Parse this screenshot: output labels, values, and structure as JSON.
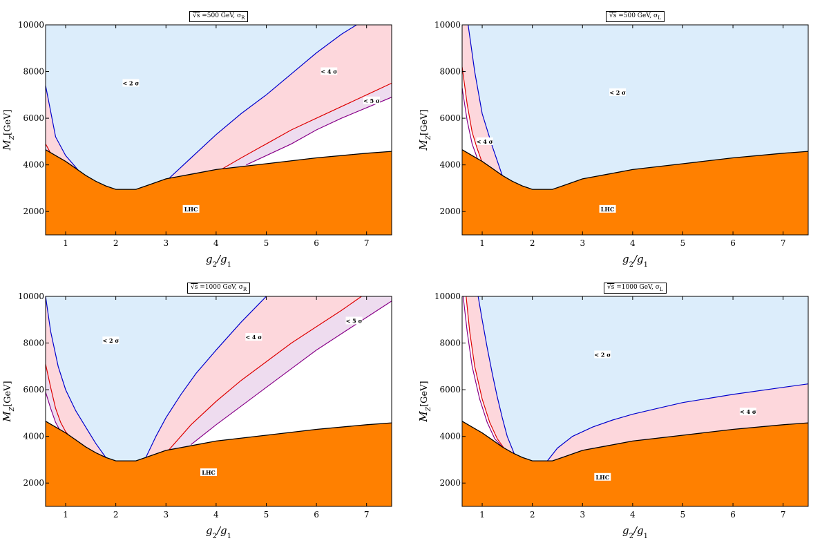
{
  "chart_data": [
    {
      "type": "area",
      "title": "√s =500 GeV, σR",
      "title_parts": {
        "sqrt": "√s",
        "rest": " =500 GeV, σ",
        "sub": "R"
      },
      "xlabel": "g2/g1",
      "ylabel": "MZ[GeV]",
      "xlim": [
        0.6,
        7.5
      ],
      "ylim": [
        1000,
        10000
      ],
      "xticks": [
        1,
        2,
        3,
        4,
        5,
        6,
        7
      ],
      "yticks": [
        2000,
        4000,
        6000,
        8000,
        10000
      ],
      "regions": [
        {
          "name": "< 2σ",
          "label": "< 2 σ",
          "color": "#dcedfb",
          "label_at": [
            2.3,
            7500
          ]
        },
        {
          "name": "< 4σ",
          "label": "< 4 σ",
          "color": "#fdd7dc",
          "label_at": [
            6.25,
            8000
          ]
        },
        {
          "name": "< 5σ",
          "label": "< 5 σ",
          "color": "#eedcef",
          "label_at": [
            7.1,
            6750
          ]
        },
        {
          "name": "LHC",
          "label": "LHC",
          "color": "#ff8000",
          "label_at": [
            3.5,
            2100
          ]
        }
      ],
      "boundaries": [
        {
          "name": "2σ",
          "color": "#0000cc",
          "left": [
            [
              0.6,
              7400
            ],
            [
              0.8,
              5200
            ],
            [
              1.0,
              4400
            ],
            [
              1.2,
              3900
            ],
            [
              1.35,
              3500
            ]
          ],
          "right": [
            [
              3.05,
              3400
            ],
            [
              3.5,
              4300
            ],
            [
              4.0,
              5300
            ],
            [
              4.5,
              6200
            ],
            [
              5.0,
              7000
            ],
            [
              5.5,
              7900
            ],
            [
              6.0,
              8800
            ],
            [
              6.5,
              9600
            ],
            [
              6.8,
              10000
            ]
          ]
        },
        {
          "name": "4σ",
          "color": "#dd0000",
          "left": [
            [
              0.6,
              4900
            ],
            [
              0.7,
              4500
            ]
          ],
          "right": [
            [
              4.1,
              3800
            ],
            [
              4.5,
              4300
            ],
            [
              5.0,
              4900
            ],
            [
              5.5,
              5500
            ],
            [
              6.0,
              6000
            ],
            [
              6.5,
              6500
            ],
            [
              7.0,
              7000
            ],
            [
              7.5,
              7500
            ]
          ]
        },
        {
          "name": "5σ",
          "color": "#880088",
          "left": [],
          "right": [
            [
              4.6,
              4000
            ],
            [
              5.0,
              4400
            ],
            [
              5.5,
              4900
            ],
            [
              6.0,
              5500
            ],
            [
              6.5,
              6000
            ],
            [
              7.0,
              6450
            ],
            [
              7.5,
              6900
            ]
          ]
        }
      ],
      "lhc_boundary": [
        [
          0.6,
          4650
        ],
        [
          0.8,
          4400
        ],
        [
          1.0,
          4150
        ],
        [
          1.2,
          3850
        ],
        [
          1.4,
          3550
        ],
        [
          1.6,
          3300
        ],
        [
          1.8,
          3100
        ],
        [
          2.0,
          2950
        ],
        [
          2.4,
          2950
        ],
        [
          2.6,
          3100
        ],
        [
          3.0,
          3400
        ],
        [
          3.5,
          3600
        ],
        [
          4.0,
          3800
        ],
        [
          5.0,
          4050
        ],
        [
          6.0,
          4300
        ],
        [
          7.0,
          4500
        ],
        [
          7.5,
          4580
        ]
      ]
    },
    {
      "type": "area",
      "title": "√s =500 GeV, σL",
      "title_parts": {
        "sqrt": "√s",
        "rest": " =500 GeV, σ",
        "sub": "L"
      },
      "xlabel": "g2/g1",
      "ylabel": "MZ[GeV]",
      "xlim": [
        0.6,
        7.5
      ],
      "ylim": [
        1000,
        10000
      ],
      "xticks": [
        1,
        2,
        3,
        4,
        5,
        6,
        7
      ],
      "yticks": [
        2000,
        4000,
        6000,
        8000,
        10000
      ],
      "regions": [
        {
          "name": "< 2σ",
          "label": "< 2 σ",
          "color": "#dcedfb",
          "label_at": [
            3.7,
            7100
          ]
        },
        {
          "name": "< 4σ",
          "label": "< 4 σ",
          "color": "#fdd7dc",
          "label_at": [
            1.05,
            5000
          ]
        },
        {
          "name": "LHC",
          "label": "LHC",
          "color": "#ff8000",
          "label_at": [
            3.5,
            2100
          ]
        }
      ],
      "boundaries": [
        {
          "name": "2σ",
          "color": "#0000cc",
          "left": [
            [
              0.72,
              10000
            ],
            [
              0.85,
              8000
            ],
            [
              1.0,
              6200
            ],
            [
              1.2,
              4800
            ],
            [
              1.4,
              3550
            ]
          ],
          "right": []
        },
        {
          "name": "4σ",
          "color": "#dd0000",
          "left": [
            [
              0.6,
              8200
            ],
            [
              0.7,
              6600
            ],
            [
              0.8,
              5400
            ],
            [
              0.9,
              4700
            ],
            [
              1.0,
              4100
            ]
          ],
          "right": []
        },
        {
          "name": "5σ",
          "color": "#880088",
          "left": [
            [
              0.6,
              7300
            ],
            [
              0.7,
              5900
            ],
            [
              0.8,
              4900
            ],
            [
              0.9,
              4300
            ]
          ],
          "right": []
        }
      ],
      "lhc_boundary": [
        [
          0.6,
          4650
        ],
        [
          0.8,
          4400
        ],
        [
          1.0,
          4150
        ],
        [
          1.2,
          3850
        ],
        [
          1.4,
          3550
        ],
        [
          1.6,
          3300
        ],
        [
          1.8,
          3100
        ],
        [
          2.0,
          2950
        ],
        [
          2.4,
          2950
        ],
        [
          2.6,
          3100
        ],
        [
          3.0,
          3400
        ],
        [
          3.5,
          3600
        ],
        [
          4.0,
          3800
        ],
        [
          5.0,
          4050
        ],
        [
          6.0,
          4300
        ],
        [
          7.0,
          4500
        ],
        [
          7.5,
          4580
        ]
      ]
    },
    {
      "type": "area",
      "title": "√s =1000 GeV, σR",
      "title_parts": {
        "sqrt": "√s",
        "rest": " =1000 GeV, σ",
        "sub": "R"
      },
      "xlabel": "g2/g1",
      "ylabel": "MZ[GeV]",
      "xlim": [
        0.6,
        7.5
      ],
      "ylim": [
        1000,
        10000
      ],
      "xticks": [
        1,
        2,
        3,
        4,
        5,
        6,
        7
      ],
      "yticks": [
        2000,
        4000,
        6000,
        8000,
        10000
      ],
      "regions": [
        {
          "name": "< 2σ",
          "label": "< 2 σ",
          "color": "#dcedfb",
          "label_at": [
            1.9,
            8100
          ]
        },
        {
          "name": "< 4σ",
          "label": "< 4 σ",
          "color": "#fdd7dc",
          "label_at": [
            4.75,
            8250
          ]
        },
        {
          "name": "< 5σ",
          "label": "< 5 σ",
          "color": "#eedcef",
          "label_at": [
            6.75,
            8950
          ]
        },
        {
          "name": "LHC",
          "label": "LHC",
          "color": "#ff8000",
          "label_at": [
            3.85,
            2450
          ]
        }
      ],
      "boundaries": [
        {
          "name": "2σ",
          "color": "#0000cc",
          "left": [
            [
              0.6,
              10000
            ],
            [
              0.7,
              8500
            ],
            [
              0.85,
              7000
            ],
            [
              1.0,
              6000
            ],
            [
              1.2,
              5100
            ],
            [
              1.4,
              4400
            ],
            [
              1.6,
              3700
            ],
            [
              1.8,
              3100
            ]
          ],
          "right": [
            [
              2.6,
              3100
            ],
            [
              2.8,
              4000
            ],
            [
              3.0,
              4800
            ],
            [
              3.3,
              5800
            ],
            [
              3.6,
              6700
            ],
            [
              4.0,
              7700
            ],
            [
              4.5,
              8900
            ],
            [
              5.0,
              10000
            ]
          ]
        },
        {
          "name": "4σ",
          "color": "#dd0000",
          "left": [
            [
              0.6,
              7100
            ],
            [
              0.7,
              6100
            ],
            [
              0.8,
              5200
            ],
            [
              0.9,
              4600
            ],
            [
              1.0,
              4200
            ],
            [
              1.2,
              3700
            ]
          ],
          "right": [
            [
              3.05,
              3400
            ],
            [
              3.5,
              4500
            ],
            [
              4.0,
              5500
            ],
            [
              4.5,
              6400
            ],
            [
              5.0,
              7200
            ],
            [
              5.5,
              8000
            ],
            [
              6.0,
              8700
            ],
            [
              6.5,
              9400
            ],
            [
              6.9,
              10000
            ]
          ]
        },
        {
          "name": "5σ",
          "color": "#880088",
          "left": [
            [
              0.6,
              5900
            ],
            [
              0.7,
              5200
            ],
            [
              0.8,
              4600
            ],
            [
              0.9,
              4200
            ],
            [
              1.0,
              3900
            ]
          ],
          "right": [
            [
              3.5,
              3650
            ],
            [
              4.0,
              4500
            ],
            [
              4.5,
              5300
            ],
            [
              5.0,
              6100
            ],
            [
              5.5,
              6900
            ],
            [
              6.0,
              7700
            ],
            [
              6.5,
              8400
            ],
            [
              7.0,
              9100
            ],
            [
              7.5,
              9800
            ]
          ]
        }
      ],
      "lhc_boundary": [
        [
          0.6,
          4650
        ],
        [
          0.8,
          4400
        ],
        [
          1.0,
          4150
        ],
        [
          1.2,
          3850
        ],
        [
          1.4,
          3550
        ],
        [
          1.6,
          3300
        ],
        [
          1.8,
          3100
        ],
        [
          2.0,
          2950
        ],
        [
          2.4,
          2950
        ],
        [
          2.6,
          3100
        ],
        [
          3.0,
          3400
        ],
        [
          3.5,
          3600
        ],
        [
          4.0,
          3800
        ],
        [
          5.0,
          4050
        ],
        [
          6.0,
          4300
        ],
        [
          7.0,
          4500
        ],
        [
          7.5,
          4580
        ]
      ]
    },
    {
      "type": "area",
      "title": "√s =1000 GeV, σL",
      "title_parts": {
        "sqrt": "√s",
        "rest": " =1000 GeV, σ",
        "sub": "L"
      },
      "xlabel": "g2/g1",
      "ylabel": "MZ[GeV]",
      "xlim": [
        0.6,
        7.5
      ],
      "ylim": [
        1000,
        10000
      ],
      "xticks": [
        1,
        2,
        3,
        4,
        5,
        6,
        7
      ],
      "yticks": [
        2000,
        4000,
        6000,
        8000,
        10000
      ],
      "regions": [
        {
          "name": "< 2σ",
          "label": "< 2 σ",
          "color": "#dcedfb",
          "label_at": [
            3.4,
            7500
          ]
        },
        {
          "name": "< 4σ",
          "label": "< 4 σ",
          "color": "#fdd7dc",
          "label_at": [
            6.3,
            5050
          ]
        },
        {
          "name": "LHC",
          "label": "LHC",
          "color": "#ff8000",
          "label_at": [
            3.4,
            2250
          ]
        }
      ],
      "boundaries": [
        {
          "name": "2σ",
          "color": "#0000cc",
          "left": [
            [
              0.92,
              10000
            ],
            [
              1.0,
              9000
            ],
            [
              1.1,
              7800
            ],
            [
              1.2,
              6700
            ],
            [
              1.3,
              5700
            ],
            [
              1.4,
              4800
            ],
            [
              1.5,
              4000
            ],
            [
              1.65,
              3200
            ]
          ],
          "right": [
            [
              2.3,
              2950
            ],
            [
              2.5,
              3500
            ],
            [
              2.8,
              4000
            ],
            [
              3.2,
              4400
            ],
            [
              3.6,
              4700
            ],
            [
              4.0,
              4950
            ],
            [
              4.5,
              5200
            ],
            [
              5.0,
              5450
            ],
            [
              6.0,
              5800
            ],
            [
              7.0,
              6100
            ],
            [
              7.5,
              6250
            ]
          ]
        },
        {
          "name": "4σ",
          "color": "#dd0000",
          "left": [
            [
              0.68,
              10000
            ],
            [
              0.75,
              8500
            ],
            [
              0.85,
              7000
            ],
            [
              1.0,
              5600
            ],
            [
              1.15,
              4600
            ],
            [
              1.3,
              3900
            ],
            [
              1.45,
              3450
            ]
          ],
          "right": []
        },
        {
          "name": "5σ",
          "color": "#880088",
          "left": [
            [
              0.62,
              10000
            ],
            [
              0.7,
              8500
            ],
            [
              0.8,
              7000
            ],
            [
              0.95,
              5600
            ],
            [
              1.1,
              4600
            ],
            [
              1.25,
              3900
            ],
            [
              1.4,
              3550
            ]
          ],
          "right": []
        }
      ],
      "lhc_boundary": [
        [
          0.6,
          4650
        ],
        [
          0.8,
          4400
        ],
        [
          1.0,
          4150
        ],
        [
          1.2,
          3850
        ],
        [
          1.4,
          3550
        ],
        [
          1.6,
          3300
        ],
        [
          1.8,
          3100
        ],
        [
          2.0,
          2950
        ],
        [
          2.4,
          2950
        ],
        [
          2.6,
          3100
        ],
        [
          3.0,
          3400
        ],
        [
          3.5,
          3600
        ],
        [
          4.0,
          3800
        ],
        [
          5.0,
          4050
        ],
        [
          6.0,
          4300
        ],
        [
          7.0,
          4500
        ],
        [
          7.5,
          4580
        ]
      ]
    }
  ]
}
